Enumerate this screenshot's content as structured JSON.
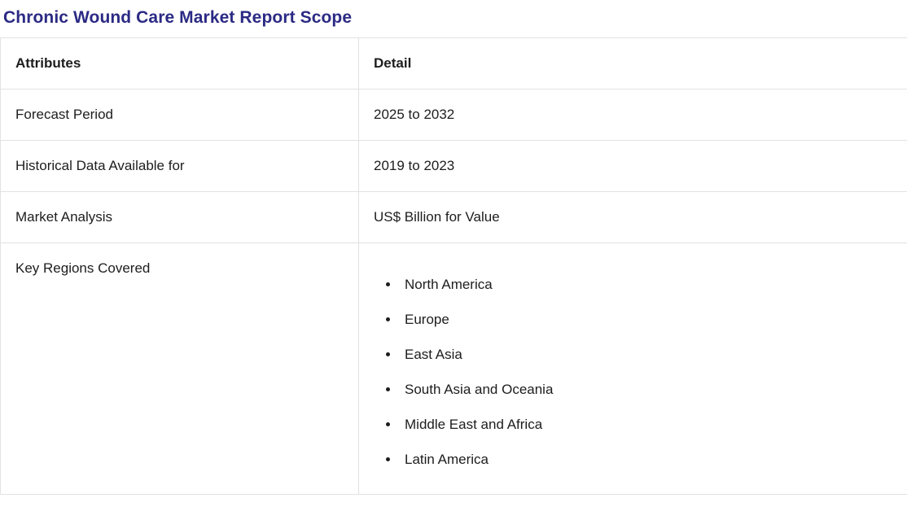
{
  "title": "Chronic Wound Care Market Report Scope",
  "title_color": "#2b2a84",
  "table": {
    "headers": [
      "Attributes",
      "Detail"
    ],
    "rows": [
      {
        "attribute": "Forecast Period",
        "detail": "2025 to 2032"
      },
      {
        "attribute": "Historical Data Available for",
        "detail": "2019 to 2023"
      },
      {
        "attribute": "Market Analysis",
        "detail": "US$ Billion for Value"
      },
      {
        "attribute": "Key Regions Covered",
        "detail_list": [
          "North America",
          "Europe",
          "East Asia",
          "South Asia and Oceania",
          "Middle East and Africa",
          "Latin America"
        ]
      }
    ]
  }
}
